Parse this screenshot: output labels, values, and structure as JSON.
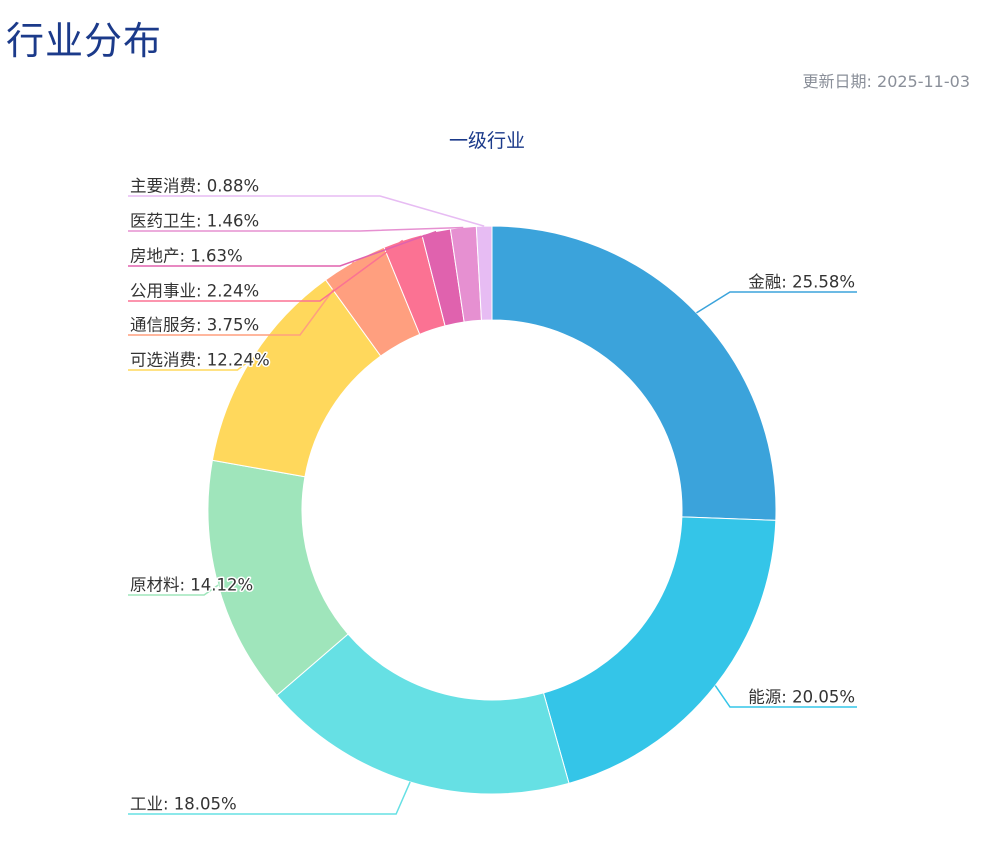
{
  "page": {
    "title": "行业分布",
    "update_date": "更新日期: 2025-11-03"
  },
  "chart_data": {
    "type": "pie",
    "variant": "donut",
    "title": "一级行业",
    "legend": "none",
    "categories": [
      "金融",
      "能源",
      "工业",
      "原材料",
      "可选消费",
      "通信服务",
      "公用事业",
      "房地产",
      "医药卫生",
      "主要消费"
    ],
    "values": [
      25.58,
      20.05,
      18.05,
      14.12,
      12.24,
      3.75,
      2.24,
      1.63,
      1.46,
      0.88
    ],
    "labels": [
      "金融: 25.58%",
      "能源: 20.05%",
      "工业: 18.05%",
      "原材料: 14.12%",
      "可选消费: 12.24%",
      "通信服务: 3.75%",
      "公用事业: 2.24%",
      "房地产: 1.63%",
      "医药卫生: 1.46%",
      "主要消费: 0.88%"
    ],
    "colors": [
      "#3ba3db",
      "#34c5e8",
      "#66e0e4",
      "#9fe5bb",
      "#ffd85c",
      "#ff9f7f",
      "#fb7293",
      "#e062ae",
      "#e690d1",
      "#e7bcf3"
    ],
    "unit": "%"
  }
}
